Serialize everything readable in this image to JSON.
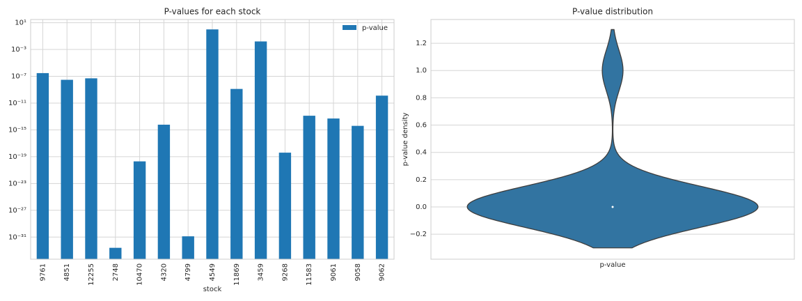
{
  "chart_data": [
    {
      "type": "bar",
      "title": "P-values for each stock",
      "xlabel": "stock",
      "categories": [
        "9761",
        "4851",
        "12255",
        "2748",
        "10470",
        "4320",
        "4799",
        "4549",
        "11869",
        "3459",
        "9268",
        "11583",
        "9061",
        "9058",
        "9062"
      ],
      "series": [
        {
          "name": "p-value",
          "color": "#1f77b4",
          "values": [
            3e-07,
            3e-08,
            5e-08,
            2.5e-33,
            2e-20,
            6e-15,
            1.3e-31,
            1.0,
            1.3e-09,
            0.016,
            4e-19,
            1.3e-13,
            5e-14,
            4e-15,
            1.3e-10
          ]
        }
      ],
      "log_y": true,
      "ylim": [
        5e-35,
        30
      ],
      "yticks": [
        {
          "value": 10,
          "label": "10¹"
        },
        {
          "value": 0.001,
          "label": "10⁻³"
        },
        {
          "value": 1e-07,
          "label": "10⁻⁷"
        },
        {
          "value": 1e-11,
          "label": "10⁻¹¹"
        },
        {
          "value": 1e-15,
          "label": "10⁻¹⁵"
        },
        {
          "value": 1e-19,
          "label": "10⁻¹⁹"
        },
        {
          "value": 1e-23,
          "label": "10⁻²³"
        },
        {
          "value": 1e-27,
          "label": "10⁻²⁷"
        },
        {
          "value": 1e-31,
          "label": "10⁻³¹"
        }
      ],
      "grid": true,
      "legend": "upper right"
    },
    {
      "type": "violin",
      "title": "P-value distribution",
      "ylabel": "p-value density",
      "categories": [
        "p-value"
      ],
      "color": "#3274a1",
      "values": [
        3e-07,
        3e-08,
        5e-08,
        2.5e-33,
        2e-20,
        6e-15,
        1.3e-31,
        1.0,
        1.3e-09,
        0.016,
        4e-19,
        1.3e-13,
        5e-14,
        4e-15,
        1.3e-10
      ],
      "ylim": [
        -0.383,
        1.374
      ],
      "yticks": [
        {
          "value": -0.2,
          "label": "−0.2"
        },
        {
          "value": 0,
          "label": "0.0"
        },
        {
          "value": 0.2,
          "label": "0.2"
        },
        {
          "value": 0.4,
          "label": "0.4"
        },
        {
          "value": 0.6,
          "label": "0.6"
        },
        {
          "value": 0.8,
          "label": "0.8"
        },
        {
          "value": 1.0,
          "label": "1.0"
        },
        {
          "value": 1.2,
          "label": "1.2"
        }
      ],
      "grid": true
    }
  ]
}
